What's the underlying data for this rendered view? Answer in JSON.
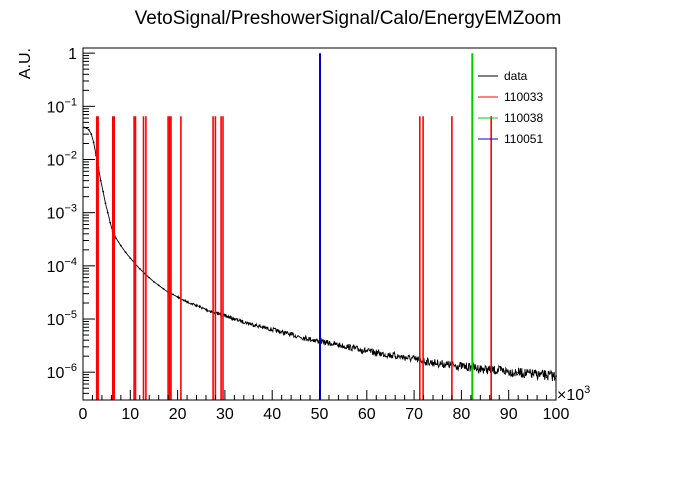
{
  "chart_data": {
    "type": "line",
    "title": "VetoSignal/PreshowerSignal/Calo/EnergyEMZoom",
    "ylabel": "A.U.",
    "xlabel": "",
    "x_multiplier_label": "×10",
    "x_multiplier_exponent": "3",
    "xlim": [
      0,
      100
    ],
    "ylim": [
      3e-07,
      1.25
    ],
    "y_scale": "log",
    "x_ticks": [
      "0",
      "10",
      "20",
      "30",
      "40",
      "50",
      "60",
      "70",
      "80",
      "90",
      "100"
    ],
    "y_ticks": [
      {
        "value": 1e-06,
        "base": "10",
        "exp": "−6"
      },
      {
        "value": 1e-05,
        "base": "10",
        "exp": "−5"
      },
      {
        "value": 0.0001,
        "base": "10",
        "exp": "−4"
      },
      {
        "value": 0.001,
        "base": "10",
        "exp": "−3"
      },
      {
        "value": 0.01,
        "base": "10",
        "exp": "−2"
      },
      {
        "value": 0.1,
        "base": "10",
        "exp": "−1"
      },
      {
        "value": 1,
        "base": "1",
        "exp": ""
      }
    ],
    "grid": false,
    "legend_position": "top-right",
    "series": [
      {
        "name": "data",
        "color": "#000000",
        "style": "points",
        "points": [
          [
            0.25,
            0.04
          ],
          [
            0.75,
            0.039
          ],
          [
            1.25,
            0.036
          ],
          [
            1.75,
            0.03
          ],
          [
            2.25,
            0.021
          ],
          [
            2.75,
            0.012
          ],
          [
            3.25,
            0.007
          ],
          [
            3.75,
            0.004
          ],
          [
            4.25,
            0.0025
          ],
          [
            4.75,
            0.0015
          ],
          [
            5.25,
            0.001
          ],
          [
            5.75,
            0.00065
          ],
          [
            6.25,
            0.00045
          ],
          [
            7,
            0.00033
          ],
          [
            8,
            0.00024
          ],
          [
            9,
            0.00018
          ],
          [
            10,
            0.00014
          ],
          [
            11,
            0.00011
          ],
          [
            12,
            8.8e-05
          ],
          [
            13,
            7.2e-05
          ],
          [
            14,
            6e-05
          ],
          [
            15,
            5e-05
          ],
          [
            16,
            4.3e-05
          ],
          [
            17,
            3.7e-05
          ],
          [
            18,
            3.2e-05
          ],
          [
            19,
            2.9e-05
          ],
          [
            20,
            2.6e-05
          ],
          [
            22,
            2.1e-05
          ],
          [
            24,
            1.8e-05
          ],
          [
            26,
            1.5e-05
          ],
          [
            28,
            1.3e-05
          ],
          [
            30,
            1.15e-05
          ],
          [
            32,
            1e-05
          ],
          [
            35,
            8.3e-06
          ],
          [
            38,
            7e-06
          ],
          [
            41,
            6e-06
          ],
          [
            44,
            5.1e-06
          ],
          [
            47,
            4.4e-06
          ],
          [
            50,
            3.8e-06
          ],
          [
            53,
            3.4e-06
          ],
          [
            56,
            3e-06
          ],
          [
            59,
            2.6e-06
          ],
          [
            62,
            2.3e-06
          ],
          [
            65,
            2.1e-06
          ],
          [
            68,
            1.9e-06
          ],
          [
            71,
            1.7e-06
          ],
          [
            74,
            1.5e-06
          ],
          [
            77,
            1.4e-06
          ],
          [
            80,
            1.3e-06
          ],
          [
            83,
            1.2e-06
          ],
          [
            86,
            1.1e-06
          ],
          [
            89,
            1.05e-06
          ],
          [
            92,
            9.8e-07
          ],
          [
            95,
            9.2e-07
          ],
          [
            98,
            8.7e-07
          ],
          [
            100,
            8.4e-07
          ]
        ]
      },
      {
        "name": "110033",
        "color": "#ff0000",
        "style": "spikes",
        "spikes": [
          {
            "x": 2.9,
            "y": 0.065
          },
          {
            "x": 3.2,
            "y": 0.065
          },
          {
            "x": 6.3,
            "y": 0.065
          },
          {
            "x": 6.6,
            "y": 0.065
          },
          {
            "x": 10.8,
            "y": 0.065
          },
          {
            "x": 11.1,
            "y": 0.065
          },
          {
            "x": 12.8,
            "y": 0.065
          },
          {
            "x": 13.3,
            "y": 0.065
          },
          {
            "x": 18.0,
            "y": 0.065
          },
          {
            "x": 18.3,
            "y": 0.065
          },
          {
            "x": 18.6,
            "y": 0.065
          },
          {
            "x": 20.7,
            "y": 0.065
          },
          {
            "x": 27.5,
            "y": 0.065
          },
          {
            "x": 28.0,
            "y": 0.065
          },
          {
            "x": 29.2,
            "y": 0.065
          },
          {
            "x": 29.6,
            "y": 0.065
          },
          {
            "x": 71.2,
            "y": 0.065
          },
          {
            "x": 71.9,
            "y": 0.065
          },
          {
            "x": 78.0,
            "y": 0.065
          },
          {
            "x": 86.3,
            "y": 0.065
          }
        ]
      },
      {
        "name": "110038",
        "color": "#00cc00",
        "style": "spikes",
        "spikes": [
          {
            "x": 82.3,
            "y": 1.0
          }
        ]
      },
      {
        "name": "110051",
        "color": "#0000cc",
        "style": "spikes",
        "spikes": [
          {
            "x": 50.1,
            "y": 1.0
          }
        ]
      }
    ]
  }
}
